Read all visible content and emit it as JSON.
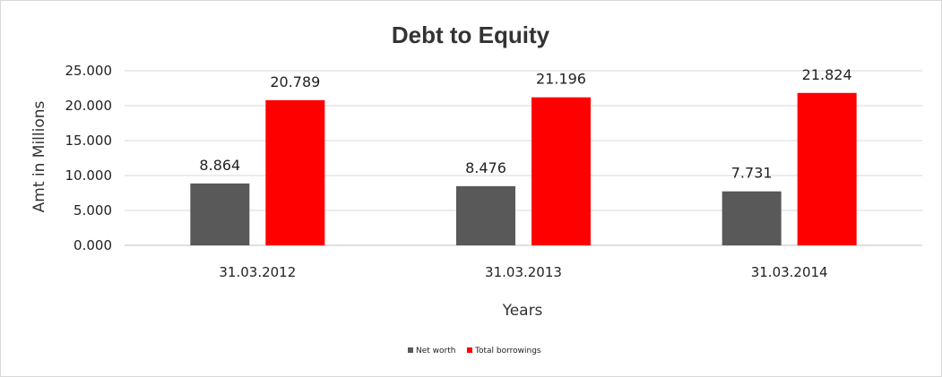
{
  "chart_data": {
    "type": "bar",
    "title": "Debt to Equity",
    "xlabel": "Years",
    "ylabel": "Amt in Millions",
    "categories": [
      "31.03.2012",
      "31.03.2013",
      "31.03.2014"
    ],
    "series": [
      {
        "name": "Net worth",
        "values": [
          8.864,
          8.476,
          7.731
        ],
        "labels": [
          "8.864",
          "8.476",
          "7.731"
        ],
        "color": "#595959"
      },
      {
        "name": "Total borrowings",
        "values": [
          20.789,
          21.196,
          21.824
        ],
        "labels": [
          "20.789",
          "21.196",
          "21.824"
        ],
        "color": "#ff0000"
      }
    ],
    "ylim": [
      0,
      25
    ],
    "yticks": [
      0,
      5,
      10,
      15,
      20,
      25
    ],
    "ytick_labels": [
      "0.000",
      "5.000",
      "10.000",
      "15.000",
      "20.000",
      "25.000"
    ],
    "grid": true,
    "legend_position": "bottom"
  }
}
